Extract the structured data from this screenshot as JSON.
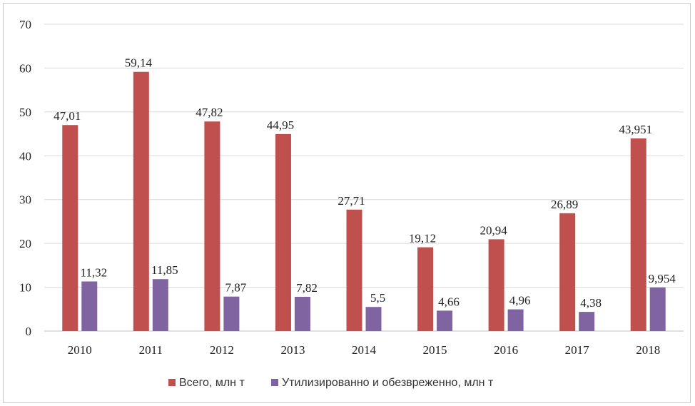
{
  "chart_data": {
    "type": "bar",
    "categories": [
      "2010",
      "2011",
      "2012",
      "2013",
      "2014",
      "2015",
      "2016",
      "2017",
      "2018"
    ],
    "series": [
      {
        "name": "Всего, млн т",
        "color": "#c0504d",
        "values": [
          47.01,
          59.14,
          47.82,
          44.95,
          27.71,
          19.12,
          20.94,
          26.89,
          43.951
        ],
        "labels": [
          "47,01",
          "59,14",
          "47,82",
          "44,95",
          "27,71",
          "19,12",
          "20,94",
          "26,89",
          "43,951"
        ]
      },
      {
        "name": "Утилизированно и обезвреженно, млн т",
        "color": "#8064a2",
        "values": [
          11.32,
          11.85,
          7.87,
          7.82,
          5.5,
          4.66,
          4.96,
          4.38,
          9.954
        ],
        "labels": [
          "11,32",
          "11,85",
          "7,87",
          "7,82",
          "5,5",
          "4,66",
          "4,96",
          "4,38",
          "9,954"
        ]
      }
    ],
    "yticks": [
      "0",
      "10",
      "20",
      "30",
      "40",
      "50",
      "60",
      "70"
    ],
    "ylim": [
      0,
      70
    ],
    "grid": true,
    "legend": "bottom"
  }
}
